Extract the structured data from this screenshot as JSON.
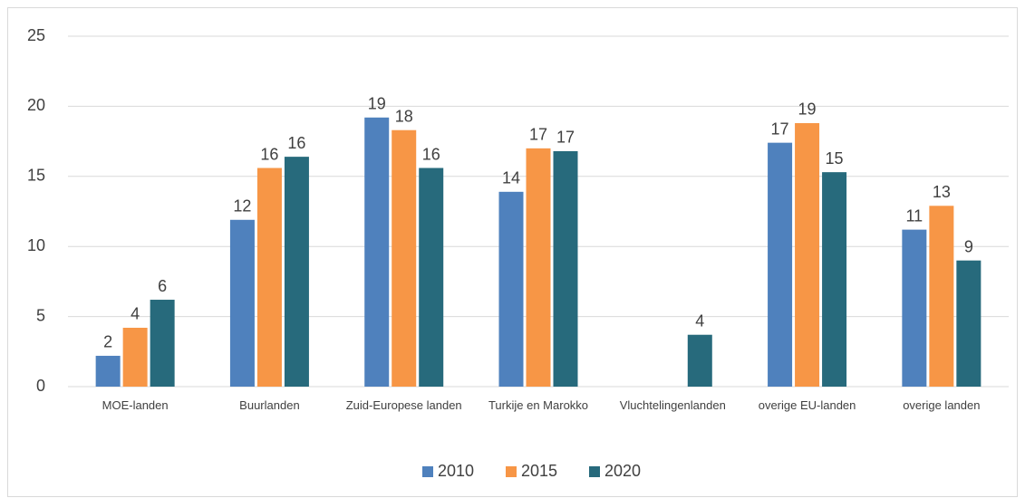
{
  "chart_data": {
    "type": "bar",
    "categories": [
      "MOE-landen",
      "Buurlanden",
      "Zuid-Europese landen",
      "Turkije en Marokko",
      "Vluchtelingenlanden",
      "overige EU-landen",
      "overige landen"
    ],
    "series": [
      {
        "name": "2010",
        "color": "#4f81bd",
        "values": [
          2.2,
          11.9,
          19.2,
          13.9,
          null,
          17.4,
          11.2
        ],
        "value_labels": [
          "2",
          "12",
          "19",
          "14",
          null,
          "17",
          "11"
        ]
      },
      {
        "name": "2015",
        "color": "#f79646",
        "values": [
          4.2,
          15.6,
          18.3,
          17.0,
          null,
          18.8,
          12.9
        ],
        "value_labels": [
          "4",
          "16",
          "18",
          "17",
          null,
          "19",
          "13"
        ]
      },
      {
        "name": "2020",
        "color": "#276a7c",
        "values": [
          6.2,
          16.4,
          15.6,
          16.8,
          3.7,
          15.3,
          9.0
        ],
        "value_labels": [
          "6",
          "16",
          "16",
          "17",
          "4",
          "15",
          "9"
        ]
      }
    ],
    "ylim": [
      0,
      25
    ],
    "yticks": [
      0,
      5,
      10,
      15,
      20,
      25
    ],
    "grid": true,
    "legend": "bottom"
  }
}
